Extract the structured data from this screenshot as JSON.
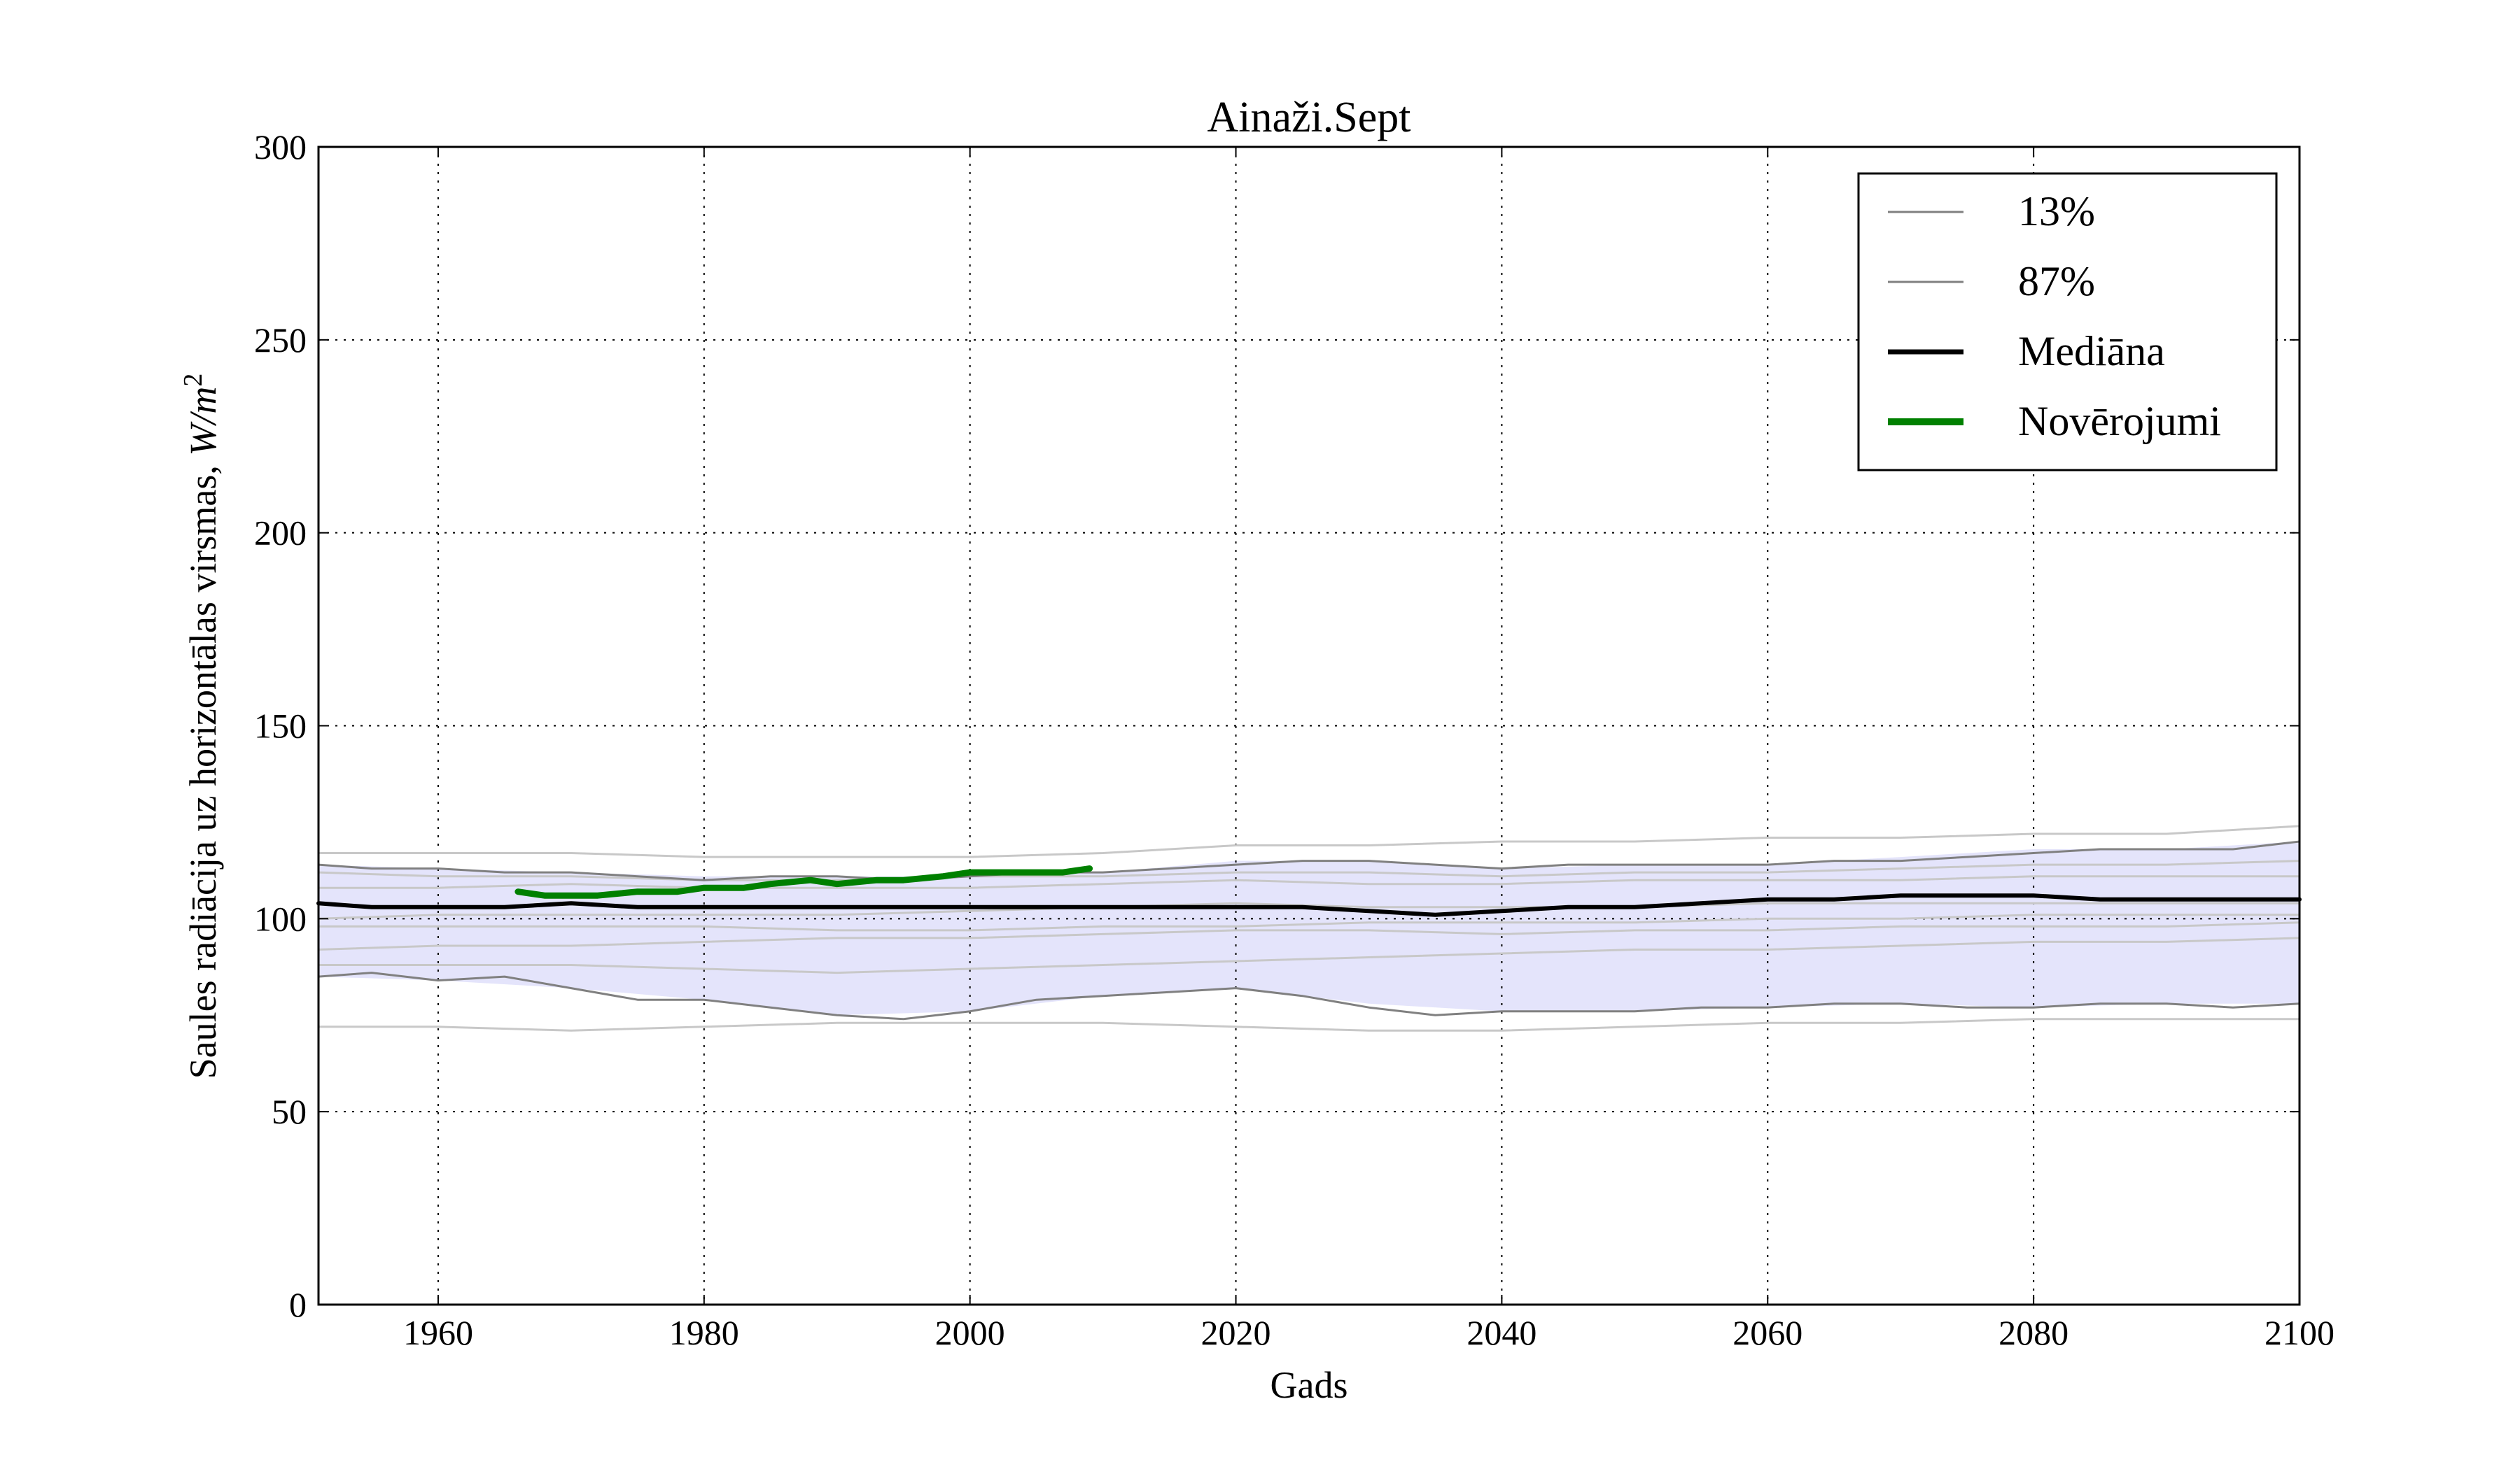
{
  "chart_data": {
    "type": "line",
    "title": "Ainaži.Sept",
    "xlabel": "Gads",
    "ylabel_text": "Saules radiācija uz horizontālas virsmas, ",
    "ylabel_unit_W": "W",
    "ylabel_unit_m": "m",
    "ylabel_unit_exp": "2",
    "xlim": [
      1951,
      2100
    ],
    "ylim": [
      0,
      300
    ],
    "xticks": [
      1960,
      1980,
      2000,
      2020,
      2040,
      2060,
      2080,
      2100
    ],
    "yticks": [
      0,
      50,
      100,
      150,
      200,
      250,
      300
    ],
    "xtick_labels": [
      "1960",
      "1980",
      "2000",
      "2020",
      "2040",
      "2060",
      "2080",
      "2100"
    ],
    "ytick_labels": [
      "0",
      "50",
      "100",
      "150",
      "200",
      "250",
      "300"
    ],
    "grid": true,
    "legend_position": "top-right",
    "legend": [
      {
        "label": "13%",
        "color": "#808080",
        "style": "thin"
      },
      {
        "label": "87%",
        "color": "#808080",
        "style": "thin"
      },
      {
        "label": "Mediāna",
        "color": "#000000",
        "style": "thick"
      },
      {
        "label": "Novērojumi",
        "color": "#008000",
        "style": "thick"
      }
    ],
    "band": {
      "color": "#e4e4fb",
      "x": [
        1951,
        1960,
        1970,
        1980,
        1990,
        2000,
        2010,
        2020,
        2030,
        2040,
        2050,
        2060,
        2070,
        2080,
        2090,
        2100
      ],
      "lower": [
        85,
        84,
        82,
        79,
        75,
        76,
        80,
        82,
        78,
        76,
        76,
        77,
        78,
        77,
        78,
        78
      ],
      "upper": [
        114,
        113,
        112,
        111,
        111,
        111,
        112,
        115,
        115,
        113,
        114,
        114,
        116,
        118,
        118,
        120
      ]
    },
    "series": [
      {
        "name": "13%",
        "color": "#808080",
        "width": 3,
        "x": [
          1951,
          1955,
          1960,
          1965,
          1970,
          1975,
          1980,
          1985,
          1990,
          1995,
          2000,
          2005,
          2010,
          2015,
          2020,
          2025,
          2030,
          2035,
          2040,
          2045,
          2050,
          2055,
          2060,
          2065,
          2070,
          2075,
          2080,
          2085,
          2090,
          2095,
          2100
        ],
        "y": [
          85,
          86,
          84,
          85,
          82,
          79,
          79,
          77,
          75,
          74,
          76,
          79,
          80,
          81,
          82,
          80,
          77,
          75,
          76,
          76,
          76,
          77,
          77,
          78,
          78,
          77,
          77,
          78,
          78,
          77,
          78
        ]
      },
      {
        "name": "87%",
        "color": "#808080",
        "width": 3,
        "x": [
          1951,
          1955,
          1960,
          1965,
          1970,
          1975,
          1980,
          1985,
          1990,
          1995,
          2000,
          2005,
          2010,
          2015,
          2020,
          2025,
          2030,
          2035,
          2040,
          2045,
          2050,
          2055,
          2060,
          2065,
          2070,
          2075,
          2080,
          2085,
          2090,
          2095,
          2100
        ],
        "y": [
          114,
          113,
          113,
          112,
          112,
          111,
          110,
          111,
          111,
          110,
          111,
          112,
          112,
          113,
          114,
          115,
          115,
          114,
          113,
          114,
          114,
          114,
          114,
          115,
          115,
          116,
          117,
          118,
          118,
          118,
          120
        ]
      },
      {
        "name": "Mediāna",
        "color": "#000000",
        "width": 6,
        "x": [
          1951,
          1955,
          1960,
          1965,
          1970,
          1975,
          1980,
          1985,
          1990,
          1995,
          2000,
          2005,
          2010,
          2015,
          2020,
          2025,
          2030,
          2035,
          2040,
          2045,
          2050,
          2055,
          2060,
          2065,
          2070,
          2075,
          2080,
          2085,
          2090,
          2095,
          2100
        ],
        "y": [
          104,
          103,
          103,
          103,
          104,
          103,
          103,
          103,
          103,
          103,
          103,
          103,
          103,
          103,
          103,
          103,
          102,
          101,
          102,
          103,
          103,
          104,
          105,
          105,
          106,
          106,
          106,
          105,
          105,
          105,
          105
        ]
      },
      {
        "name": "Novērojumi",
        "color": "#008000",
        "width": 9,
        "x": [
          1966,
          1968,
          1970,
          1972,
          1975,
          1978,
          1980,
          1983,
          1985,
          1988,
          1990,
          1993,
          1995,
          1998,
          2000,
          2003,
          2005,
          2007,
          2009
        ],
        "y": [
          107,
          106,
          106,
          106,
          107,
          107,
          108,
          108,
          109,
          110,
          109,
          110,
          110,
          111,
          112,
          112,
          112,
          112,
          113
        ]
      }
    ],
    "ensemble": {
      "color": "#c8c8c8",
      "x": [
        1951,
        1960,
        1970,
        1980,
        1990,
        2000,
        2010,
        2020,
        2030,
        2040,
        2050,
        2060,
        2070,
        2080,
        2090,
        2100
      ],
      "members": [
        [
          117,
          117,
          117,
          116,
          116,
          116,
          117,
          119,
          119,
          120,
          120,
          121,
          121,
          122,
          122,
          124
        ],
        [
          112,
          111,
          111,
          110,
          110,
          111,
          111,
          112,
          112,
          111,
          112,
          112,
          113,
          114,
          114,
          115
        ],
        [
          108,
          108,
          109,
          108,
          108,
          108,
          109,
          110,
          109,
          109,
          110,
          110,
          110,
          111,
          111,
          111
        ],
        [
          100,
          101,
          101,
          101,
          101,
          102,
          103,
          104,
          103,
          103,
          103,
          104,
          104,
          104,
          104,
          104
        ],
        [
          98,
          98,
          98,
          98,
          97,
          97,
          98,
          98,
          99,
          99,
          99,
          100,
          100,
          101,
          101,
          101
        ],
        [
          92,
          93,
          93,
          94,
          95,
          95,
          96,
          97,
          97,
          96,
          97,
          97,
          98,
          98,
          98,
          99
        ],
        [
          88,
          88,
          88,
          87,
          86,
          87,
          88,
          89,
          90,
          91,
          92,
          92,
          93,
          94,
          94,
          95
        ],
        [
          72,
          72,
          71,
          72,
          73,
          73,
          73,
          72,
          71,
          71,
          72,
          73,
          73,
          74,
          74,
          74
        ]
      ]
    }
  }
}
